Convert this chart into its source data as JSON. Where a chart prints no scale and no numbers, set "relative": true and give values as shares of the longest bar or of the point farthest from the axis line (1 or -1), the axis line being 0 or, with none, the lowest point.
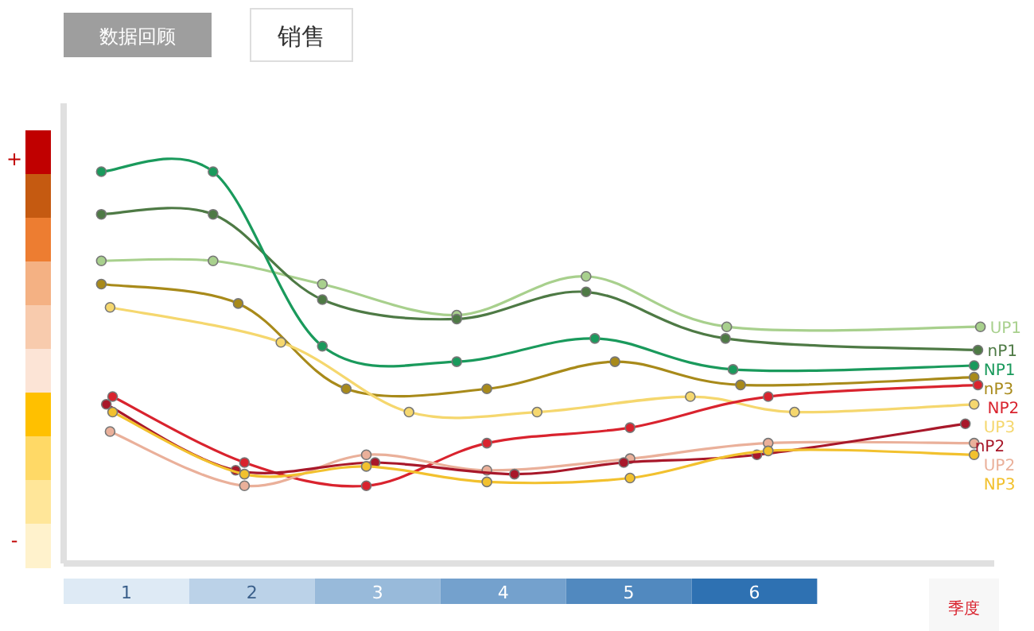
{
  "chart_data": {
    "type": "line",
    "relative": true,
    "xlabel": "季度",
    "xlim": [
      0.5,
      7.91
    ],
    "xticks": [
      1,
      2,
      3,
      4,
      5,
      6
    ],
    "marker": "circle",
    "line_style": "solid",
    "grid": false,
    "annotations": [
      "数据回顾",
      "销售",
      "+",
      "-"
    ],
    "series": [
      {
        "name": "UP1",
        "color": "#a8d08d",
        "x": [
          0.8,
          1.69,
          2.56,
          3.63,
          4.66,
          5.78,
          7.8
        ],
        "values": [
          0.77,
          0.77,
          0.71,
          0.63,
          0.73,
          0.6,
          0.6
        ]
      },
      {
        "name": "nP1",
        "color": "#4e7a45",
        "x": [
          0.8,
          1.69,
          2.56,
          3.63,
          4.66,
          5.77,
          7.78
        ],
        "values": [
          0.89,
          0.89,
          0.67,
          0.62,
          0.69,
          0.57,
          0.54
        ]
      },
      {
        "name": "NP1",
        "color": "#1a9a5c",
        "x": [
          0.8,
          1.69,
          2.56,
          3.63,
          4.73,
          5.83,
          7.75
        ],
        "values": [
          1.0,
          1.0,
          0.55,
          0.51,
          0.57,
          0.49,
          0.5
        ]
      },
      {
        "name": "nP3",
        "color": "#a88a1a",
        "x": [
          0.8,
          1.89,
          2.75,
          3.87,
          4.89,
          5.89,
          7.75
        ],
        "values": [
          0.71,
          0.66,
          0.44,
          0.44,
          0.51,
          0.45,
          0.47
        ]
      },
      {
        "name": "UP3",
        "color": "#f5d76e",
        "x": [
          0.87,
          2.23,
          3.25,
          4.27,
          5.49,
          6.32,
          7.75
        ],
        "values": [
          0.65,
          0.56,
          0.38,
          0.38,
          0.42,
          0.38,
          0.4
        ]
      },
      {
        "name": "NP2",
        "color": "#d9232e",
        "x": [
          0.89,
          1.94,
          2.91,
          3.87,
          5.01,
          6.11,
          7.78
        ],
        "values": [
          0.42,
          0.25,
          0.19,
          0.3,
          0.34,
          0.42,
          0.45
        ]
      },
      {
        "name": "UP2",
        "color": "#eab09a",
        "x": [
          0.87,
          1.94,
          2.91,
          3.87,
          5.01,
          6.11,
          7.75
        ],
        "values": [
          0.33,
          0.19,
          0.27,
          0.23,
          0.26,
          0.3,
          0.3
        ]
      },
      {
        "name": "nP2",
        "color": "#a8182a",
        "x": [
          0.84,
          1.87,
          2.98,
          4.09,
          4.96,
          6.02,
          7.68
        ],
        "values": [
          0.4,
          0.23,
          0.25,
          0.22,
          0.25,
          0.27,
          0.35
        ]
      },
      {
        "name": "NP3",
        "color": "#f2c12e",
        "x": [
          0.89,
          1.94,
          2.91,
          3.87,
          5.01,
          6.11,
          7.75
        ],
        "values": [
          0.38,
          0.22,
          0.24,
          0.2,
          0.21,
          0.28,
          0.27
        ]
      }
    ]
  }
}
